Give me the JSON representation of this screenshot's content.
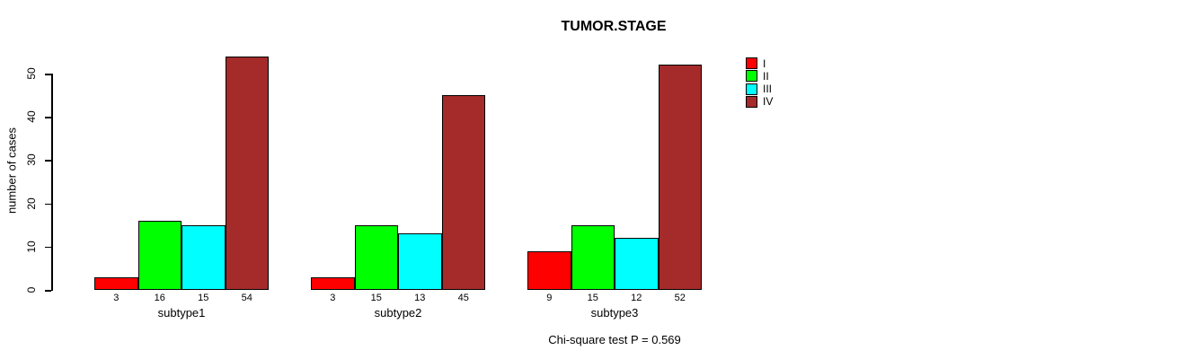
{
  "chart_data": {
    "type": "bar",
    "title": "TUMOR.STAGE",
    "ylabel": "number of cases",
    "xlabel": "",
    "categories": [
      "subtype1",
      "subtype2",
      "subtype3"
    ],
    "series": [
      {
        "name": "I",
        "color": "#FF0000",
        "values": [
          3,
          3,
          9
        ]
      },
      {
        "name": "II",
        "color": "#00FF00",
        "values": [
          16,
          15,
          15
        ]
      },
      {
        "name": "III",
        "color": "#00FFFF",
        "values": [
          15,
          13,
          12
        ]
      },
      {
        "name": "IV",
        "color": "#A52A2A",
        "values": [
          54,
          45,
          52
        ]
      }
    ],
    "yticks": [
      0,
      10,
      20,
      30,
      40,
      50
    ],
    "ylim": [
      0,
      50
    ],
    "grid": false,
    "legend_position": "top-right",
    "bar_value_labels": true,
    "caption": "Chi-square test P = 0.569"
  }
}
